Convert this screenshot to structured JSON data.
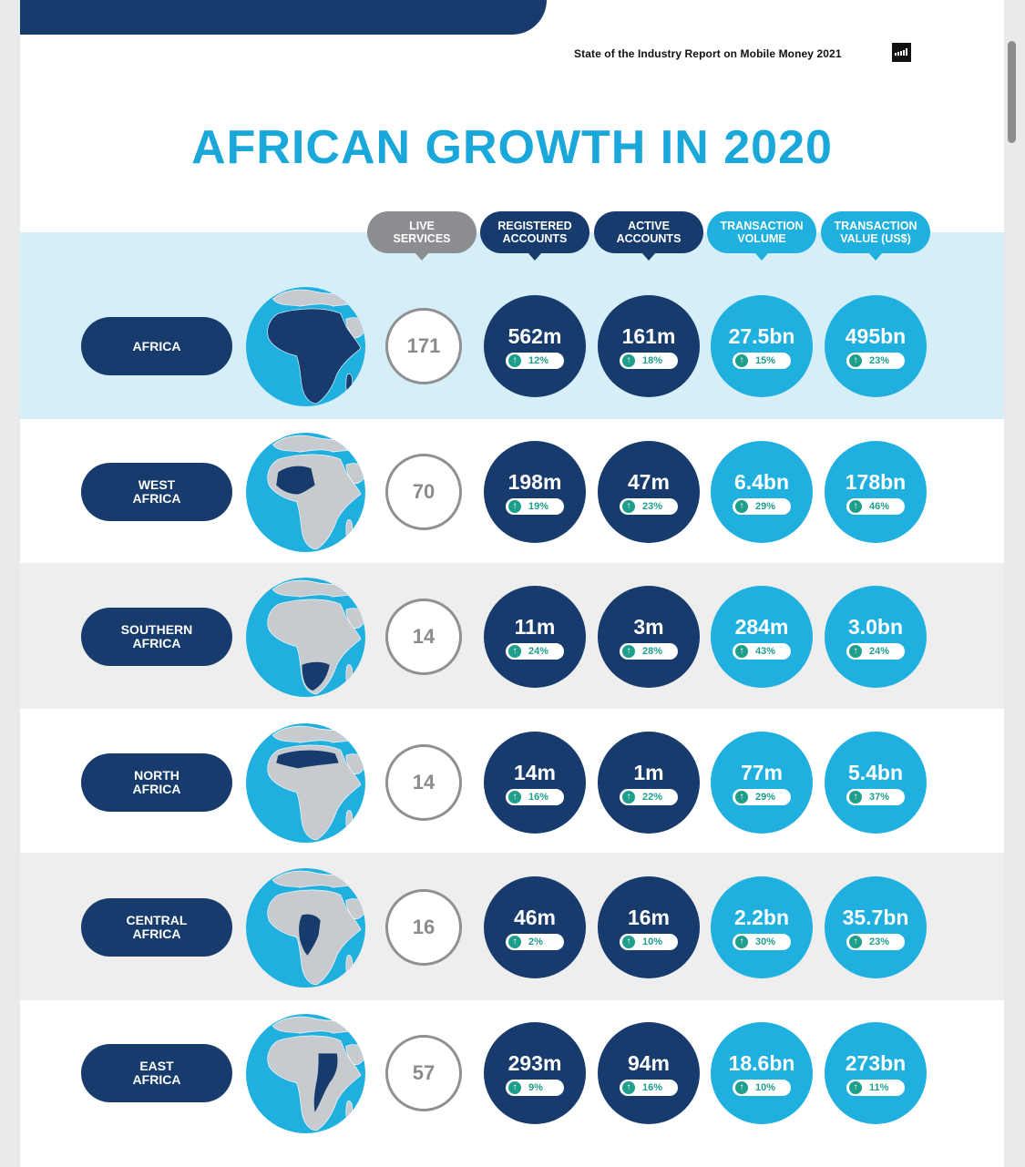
{
  "report_title": "State of the Industry Report on Mobile Money 2021",
  "main_title": "AFRICAN GROWTH IN 2020",
  "headers": [
    {
      "label": "LIVE\nSERVICES",
      "color": "#8c8d90"
    },
    {
      "label": "REGISTERED\nACCOUNTS",
      "color": "#163b6c"
    },
    {
      "label": "ACTIVE\nACCOUNTS",
      "color": "#163b6c"
    },
    {
      "label": "TRANSACTION\nVOLUME",
      "color": "#1fb0e0"
    },
    {
      "label": "TRANSACTION\nVALUE (US$)",
      "color": "#1fb0e0"
    }
  ],
  "colors": {
    "navy": "#163b6c",
    "cyan": "#1fb0e0",
    "growth_green": "#1e9e8c",
    "africa_band": "#d6eef8",
    "grey_band": "#eeeeee"
  },
  "rows": [
    {
      "region": "AFRICA",
      "highlight": "all",
      "live_services": "171",
      "registered": {
        "value": "562m",
        "change": "12%"
      },
      "active": {
        "value": "161m",
        "change": "18%"
      },
      "volume": {
        "value": "27.5bn",
        "change": "15%"
      },
      "value": {
        "value": "495bn",
        "change": "23%"
      }
    },
    {
      "region": "WEST\nAFRICA",
      "highlight": "west",
      "live_services": "70",
      "registered": {
        "value": "198m",
        "change": "19%"
      },
      "active": {
        "value": "47m",
        "change": "23%"
      },
      "volume": {
        "value": "6.4bn",
        "change": "29%"
      },
      "value": {
        "value": "178bn",
        "change": "46%"
      }
    },
    {
      "region": "SOUTHERN\nAFRICA",
      "highlight": "southern",
      "live_services": "14",
      "registered": {
        "value": "11m",
        "change": "24%"
      },
      "active": {
        "value": "3m",
        "change": "28%"
      },
      "volume": {
        "value": "284m",
        "change": "43%"
      },
      "value": {
        "value": "3.0bn",
        "change": "24%"
      }
    },
    {
      "region": "NORTH\nAFRICA",
      "highlight": "north",
      "live_services": "14",
      "registered": {
        "value": "14m",
        "change": "16%"
      },
      "active": {
        "value": "1m",
        "change": "22%"
      },
      "volume": {
        "value": "77m",
        "change": "29%"
      },
      "value": {
        "value": "5.4bn",
        "change": "37%"
      }
    },
    {
      "region": "CENTRAL\nAFRICA",
      "highlight": "central",
      "live_services": "16",
      "registered": {
        "value": "46m",
        "change": "2%"
      },
      "active": {
        "value": "16m",
        "change": "10%"
      },
      "volume": {
        "value": "2.2bn",
        "change": "30%"
      },
      "value": {
        "value": "35.7bn",
        "change": "23%"
      }
    },
    {
      "region": "EAST\nAFRICA",
      "highlight": "east",
      "live_services": "57",
      "registered": {
        "value": "293m",
        "change": "9%"
      },
      "active": {
        "value": "94m",
        "change": "16%"
      },
      "volume": {
        "value": "18.6bn",
        "change": "10%"
      },
      "value": {
        "value": "273bn",
        "change": "11%"
      }
    }
  ],
  "icons": {
    "growth": "arrow-up-circle-icon",
    "logo": "bar-chart-logo-icon"
  }
}
